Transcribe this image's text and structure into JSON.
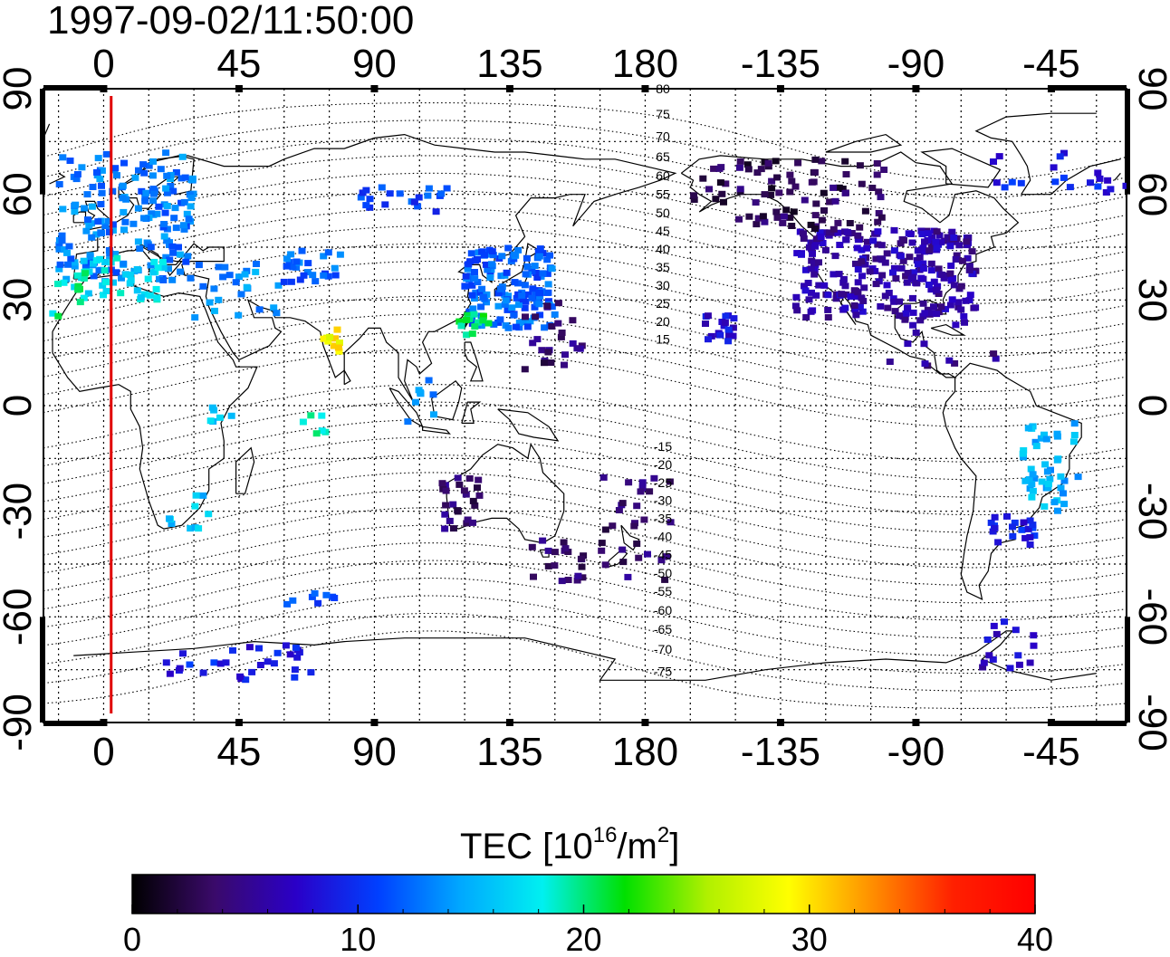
{
  "title": "1997-09-02/11:50:00",
  "map": {
    "projection": "equirectangular",
    "lon_range": [
      -20,
      340
    ],
    "lat_range": [
      -90,
      90
    ],
    "center_meridian_lon": 160,
    "grid": "dotted",
    "grid_lon_step": 15,
    "grid_lat_step": 15,
    "x_tick_labels": [
      "0",
      "45",
      "90",
      "135",
      "180",
      "-135",
      "-90",
      "-45"
    ],
    "x_tick_lons": [
      0,
      45,
      90,
      135,
      180,
      225,
      270,
      315
    ],
    "y_tick_labels": [
      "90",
      "60",
      "30",
      "0",
      "-30",
      "-60",
      "-90"
    ],
    "y_tick_lats": [
      90,
      60,
      30,
      0,
      -30,
      -60,
      -90
    ],
    "terminator_line": {
      "lon": 2.5,
      "color": "#e00000"
    },
    "contour_labels_north": [
      "80",
      "75",
      "70",
      "65",
      "60",
      "55",
      "50",
      "45",
      "40",
      "35",
      "30",
      "25",
      "20",
      "15"
    ],
    "contour_labels_south": [
      "-15",
      "-20",
      "-25",
      "-30",
      "-35",
      "-40",
      "-45",
      "-50",
      "-55",
      "-60",
      "-65",
      "-70",
      "-75"
    ],
    "contour_label_values_north": [
      80,
      75,
      70,
      65,
      60,
      55,
      50,
      45,
      40,
      35,
      30,
      25,
      20,
      15
    ],
    "contour_label_values_south": [
      -15,
      -20,
      -25,
      -30,
      -35,
      -40,
      -45,
      -50,
      -55,
      -60,
      -65,
      -70,
      -75
    ]
  },
  "colorbar": {
    "label_main": "TEC  [10",
    "label_sup": "16",
    "label_mid": "/m",
    "label_sup2": "2",
    "label_end": "]",
    "min": 0,
    "max": 40,
    "tick_labels": [
      "0",
      "10",
      "20",
      "30",
      "40"
    ],
    "tick_values": [
      0,
      10,
      20,
      30,
      40
    ],
    "colormap": [
      "#000000",
      "#3a0a6a",
      "#2a00c8",
      "#0040ff",
      "#00a8ff",
      "#00f0f0",
      "#00e000",
      "#b0f000",
      "#ffff00",
      "#ff9000",
      "#ff2000",
      "#ff0000"
    ]
  },
  "tec_clusters": [
    {
      "region": "europe",
      "lon": [
        -15,
        30
      ],
      "lat": [
        35,
        72
      ],
      "tec": 13,
      "n": 180
    },
    {
      "region": "mediterranean",
      "lon": [
        -10,
        20
      ],
      "lat": [
        30,
        42
      ],
      "tec": 17,
      "n": 40
    },
    {
      "region": "iberia-coast",
      "lon": [
        -18,
        -5
      ],
      "lat": [
        25,
        40
      ],
      "tec": 19,
      "n": 12
    },
    {
      "region": "middle-east",
      "lon": [
        30,
        60
      ],
      "lat": [
        25,
        42
      ],
      "tec": 14,
      "n": 25
    },
    {
      "region": "central-asia",
      "lon": [
        60,
        80
      ],
      "lat": [
        35,
        45
      ],
      "tec": 12,
      "n": 25
    },
    {
      "region": "siberia",
      "lon": [
        85,
        115
      ],
      "lat": [
        55,
        62
      ],
      "tec": 11,
      "n": 20
    },
    {
      "region": "india",
      "lon": [
        72,
        80
      ],
      "lat": [
        15,
        22
      ],
      "tec": 29,
      "n": 10
    },
    {
      "region": "se-asia",
      "lon": [
        100,
        110
      ],
      "lat": [
        -5,
        8
      ],
      "tec": 14,
      "n": 8
    },
    {
      "region": "east-asia",
      "lon": [
        120,
        150
      ],
      "lat": [
        22,
        45
      ],
      "tec": 12,
      "n": 150
    },
    {
      "region": "east-asia-south",
      "lon": [
        118,
        128
      ],
      "lat": [
        20,
        26
      ],
      "tec": 20,
      "n": 15
    },
    {
      "region": "pacific-nw",
      "lon": [
        140,
        160
      ],
      "lat": [
        10,
        30
      ],
      "tec": 4,
      "n": 25
    },
    {
      "region": "africa-east",
      "lon": [
        35,
        45
      ],
      "lat": [
        -5,
        0
      ],
      "tec": 16,
      "n": 6
    },
    {
      "region": "africa-central",
      "lon": [
        65,
        75
      ],
      "lat": [
        -10,
        -2
      ],
      "tec": 20,
      "n": 6
    },
    {
      "region": "south-africa",
      "lon": [
        20,
        35
      ],
      "lat": [
        -35,
        -25
      ],
      "tec": 16,
      "n": 10
    },
    {
      "region": "australia",
      "lon": [
        112,
        125
      ],
      "lat": [
        -35,
        -20
      ],
      "tec": 4,
      "n": 25
    },
    {
      "region": "australia-se",
      "lon": [
        140,
        160
      ],
      "lat": [
        -50,
        -38
      ],
      "tec": 4,
      "n": 20
    },
    {
      "region": "new-zealand",
      "lon": [
        165,
        190
      ],
      "lat": [
        -50,
        -20
      ],
      "tec": 4,
      "n": 30
    },
    {
      "region": "south-indian",
      "lon": [
        60,
        80
      ],
      "lat": [
        -57,
        -52
      ],
      "tec": 11,
      "n": 8
    },
    {
      "region": "antarctic-coast",
      "lon": [
        20,
        70
      ],
      "lat": [
        -78,
        -68
      ],
      "tec": 9,
      "n": 30
    },
    {
      "region": "north-america",
      "lon": [
        -130,
        -70
      ],
      "lat": [
        25,
        50
      ],
      "tec": 6,
      "n": 260
    },
    {
      "region": "canada",
      "lon": [
        -165,
        -100
      ],
      "lat": [
        50,
        70
      ],
      "tec": 3,
      "n": 90
    },
    {
      "region": "hawaii",
      "lon": [
        -160,
        -150
      ],
      "lat": [
        18,
        26
      ],
      "tec": 8,
      "n": 20
    },
    {
      "region": "greenland",
      "lon": [
        -65,
        -20
      ],
      "lat": [
        60,
        72
      ],
      "tec": 9,
      "n": 20
    },
    {
      "region": "caribbean",
      "lon": [
        -100,
        -60
      ],
      "lat": [
        10,
        25
      ],
      "tec": 5,
      "n": 15
    },
    {
      "region": "south-america-east",
      "lon": [
        -55,
        -35
      ],
      "lat": [
        -30,
        -5
      ],
      "tec": 15,
      "n": 45
    },
    {
      "region": "south-america-south",
      "lon": [
        -65,
        -50
      ],
      "lat": [
        -40,
        -30
      ],
      "tec": 9,
      "n": 20
    },
    {
      "region": "antarctic-peninsula",
      "lon": [
        -70,
        -50
      ],
      "lat": [
        -75,
        -60
      ],
      "tec": 7,
      "n": 15
    }
  ]
}
